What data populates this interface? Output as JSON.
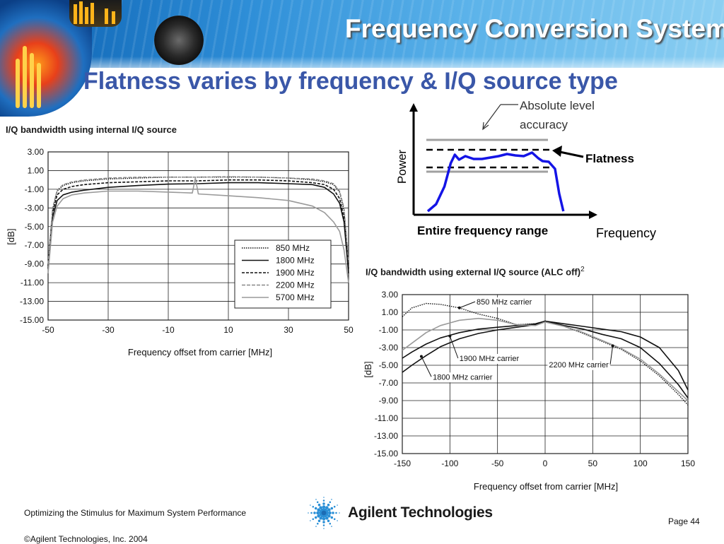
{
  "slide": {
    "title": "Frequency Conversion System",
    "subtitle": "Flatness varies by frequency & I/Q source type",
    "footer": {
      "line1": "Optimizing the Stimulus for Maximum System Performance",
      "copyright": "©Agilent Technologies, Inc. 2004",
      "page": "Page 44",
      "company": "Agilent Technologies"
    }
  },
  "colors": {
    "title_blue": "#3a57a8",
    "flatness_curve": "#1414e6",
    "reference_gray": "#a0a0a0"
  },
  "chart_data": [
    {
      "type": "line",
      "title": "I/Q bandwidth using internal I/Q source",
      "xlabel": "Frequency offset from carrier [MHz]",
      "ylabel": "[dB]",
      "xlim": [
        -50,
        50
      ],
      "ylim": [
        -15,
        3
      ],
      "xticks": [
        "-50",
        "-30",
        "-10",
        "10",
        "30",
        "50"
      ],
      "yticks": [
        "3.00",
        "1.00",
        "-1.00",
        "-3.00",
        "-5.00",
        "-7.00",
        "-9.00",
        "-11.00",
        "-13.00",
        "-15.00"
      ],
      "grid": true,
      "legend_position": "bottom-right",
      "series": [
        {
          "name": "850 MHz",
          "style": "dotted",
          "x": [
            -50,
            -48.5,
            -47,
            -45,
            -42,
            -38,
            -30,
            -20,
            -10,
            0,
            10,
            20,
            30,
            38,
            42,
            45,
            47,
            48.5,
            50
          ],
          "y": [
            -9,
            -3.2,
            -1.2,
            -0.6,
            -0.3,
            -0.1,
            0.1,
            0.2,
            0.3,
            0.3,
            0.3,
            0.3,
            0.2,
            0,
            -0.2,
            -0.5,
            -1.3,
            -3.3,
            -9
          ]
        },
        {
          "name": "1800 MHz",
          "style": "solid",
          "x": [
            -50,
            -48.5,
            -47,
            -45,
            -42,
            -38,
            -30,
            -20,
            -10,
            0,
            10,
            20,
            30,
            38,
            42,
            45,
            47,
            48.5,
            50
          ],
          "y": [
            -9.5,
            -4,
            -2.2,
            -1.6,
            -1.3,
            -1.1,
            -0.8,
            -0.6,
            -0.45,
            -0.4,
            -0.3,
            -0.3,
            -0.4,
            -0.5,
            -0.8,
            -1.5,
            -2.5,
            -4.5,
            -10
          ]
        },
        {
          "name": "1900 MHz",
          "style": "dashed",
          "x": [
            -50,
            -48.5,
            -47,
            -45,
            -42,
            -38,
            -30,
            -20,
            -10,
            0,
            10,
            20,
            30,
            38,
            42,
            45,
            47,
            48.5,
            50
          ],
          "y": [
            -9.2,
            -3.5,
            -1.6,
            -1,
            -0.7,
            -0.5,
            -0.3,
            -0.2,
            -0.1,
            -0.1,
            0,
            0,
            -0.1,
            -0.3,
            -0.5,
            -1,
            -2,
            -4,
            -9.5
          ]
        },
        {
          "name": "2200 MHz",
          "style": "dash-dot",
          "x": [
            -50,
            -48.5,
            -47,
            -45,
            -42,
            -38,
            -30,
            -20,
            -10,
            0,
            10,
            20,
            30,
            38,
            42,
            45,
            47,
            48.5,
            50
          ],
          "y": [
            -9,
            -3,
            -1.1,
            -0.5,
            -0.2,
            0,
            0.2,
            0.3,
            0.3,
            0.3,
            0.35,
            0.3,
            0.2,
            0.1,
            -0.1,
            -0.4,
            -1.2,
            -3,
            -8.8
          ]
        },
        {
          "name": "5700 MHz",
          "style": "gray",
          "x": [
            -50,
            -48.5,
            -47,
            -45,
            -42,
            -38,
            -30,
            -20,
            -10,
            -2,
            -1,
            0,
            10,
            20,
            30,
            38,
            42,
            45,
            47,
            48.5,
            50
          ],
          "y": [
            -10,
            -4.5,
            -2.8,
            -2,
            -1.6,
            -1.4,
            -1.2,
            -1.2,
            -1.3,
            -1.4,
            0.2,
            -1.5,
            -1.7,
            -1.9,
            -2.2,
            -2.8,
            -3.5,
            -4.5,
            -5.5,
            -7.5,
            -11
          ]
        }
      ]
    },
    {
      "type": "line",
      "title": "I/Q bandwidth using external I/Q source (ALC off)",
      "title_superscript": "2",
      "xlabel": "Frequency offset from carrier [MHz]",
      "ylabel": "[dB]",
      "xlim": [
        -150,
        150
      ],
      "ylim": [
        -15,
        3
      ],
      "xticks": [
        "-150",
        "-100",
        "-50",
        "0",
        "50",
        "100",
        "150"
      ],
      "yticks": [
        "3.00",
        "1.00",
        "-1.00",
        "-3.00",
        "-5.00",
        "-7.00",
        "-9.00",
        "-11.00",
        "-13.00",
        "-15.00"
      ],
      "grid": true,
      "annotations": [
        "850 MHz carrier",
        "1900 MHz carrier",
        "1800 MHz carrier",
        "2200 MHz carrier"
      ],
      "series": [
        {
          "name": "850 MHz carrier",
          "style": "dotted",
          "x": [
            -150,
            -140,
            -125,
            -110,
            -90,
            -70,
            -50,
            -30,
            -10,
            0,
            20,
            40,
            60,
            80,
            100,
            120,
            140,
            150
          ],
          "y": [
            0.5,
            1.5,
            2,
            1.9,
            1.5,
            0.8,
            0.3,
            -0.4,
            -0.3,
            0,
            -0.6,
            -1.4,
            -2.3,
            -3.2,
            -4.5,
            -6.2,
            -8.3,
            -9.5
          ]
        },
        {
          "name": "1900 MHz carrier",
          "style": "solid",
          "x": [
            -150,
            -140,
            -125,
            -110,
            -90,
            -70,
            -50,
            -30,
            -10,
            0,
            20,
            40,
            60,
            80,
            100,
            120,
            140,
            150
          ],
          "y": [
            -4.2,
            -3.5,
            -2.6,
            -1.9,
            -1.3,
            -0.9,
            -0.7,
            -0.5,
            -0.3,
            0,
            -0.5,
            -0.9,
            -1.5,
            -2,
            -3,
            -4.8,
            -7.2,
            -8.7
          ]
        },
        {
          "name": "1800 MHz carrier",
          "style": "solid",
          "x": [
            -150,
            -140,
            -125,
            -110,
            -90,
            -70,
            -50,
            -30,
            -10,
            0,
            20,
            40,
            60,
            80,
            100,
            120,
            140,
            150
          ],
          "y": [
            -5.8,
            -5,
            -3.9,
            -2.9,
            -2,
            -1.4,
            -1,
            -0.7,
            -0.4,
            0,
            -0.3,
            -0.6,
            -0.9,
            -1.2,
            -1.8,
            -3,
            -5.6,
            -7.8
          ]
        },
        {
          "name": "2200 MHz carrier",
          "style": "gray",
          "x": [
            -150,
            -140,
            -125,
            -110,
            -90,
            -70,
            -50,
            -30,
            -10,
            0,
            20,
            40,
            60,
            80,
            100,
            120,
            140,
            150
          ],
          "y": [
            -3.3,
            -2.5,
            -1.3,
            -0.5,
            0.1,
            0.3,
            0.1,
            -0.4,
            -0.5,
            -0.1,
            -0.6,
            -1.3,
            -2.2,
            -3.1,
            -4.3,
            -6,
            -8,
            -9
          ]
        }
      ]
    },
    {
      "type": "line",
      "title": "",
      "xlabel": "Frequency",
      "ylabel": "Power",
      "annotations": [
        "Absolute level accuracy",
        "Flatness",
        "Entire frequency range"
      ],
      "series": [
        {
          "name": "",
          "style": "blue-curve",
          "x": [
            0,
            2,
            4,
            5.5,
            6.5,
            7.5,
            9,
            11,
            13,
            15,
            17,
            19,
            21,
            23,
            25,
            26.5,
            27.5,
            29,
            30.5,
            31.5,
            32.5
          ],
          "y": [
            0.5,
            1.5,
            4,
            7.3,
            8.5,
            7.8,
            8.3,
            7.9,
            7.9,
            8.1,
            8.3,
            8.6,
            8.4,
            8.3,
            8.8,
            8,
            7.6,
            7.5,
            6.5,
            3,
            0.5
          ]
        }
      ]
    }
  ]
}
